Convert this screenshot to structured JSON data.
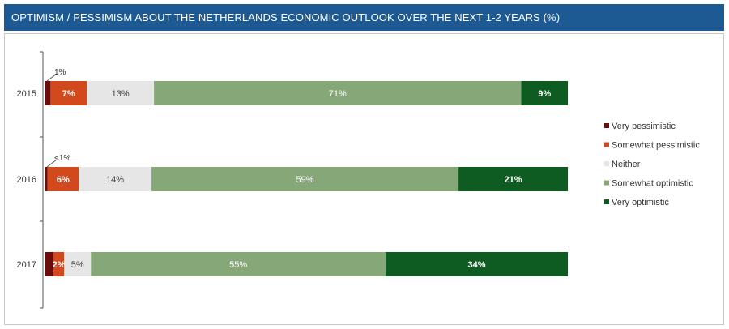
{
  "header": {
    "title": "OPTIMISM / PESSIMISM ABOUT THE NETHERLANDS ECONOMIC OUTLOOK OVER THE NEXT 1-2 YEARS (%)"
  },
  "chart_data": {
    "type": "bar",
    "orientation": "horizontal",
    "stacked": true,
    "title": "OPTIMISM / PESSIMISM ABOUT THE NETHERLANDS ECONOMIC OUTLOOK OVER THE NEXT 1-2 YEARS (%)",
    "categories": [
      "2015",
      "2016",
      "2017"
    ],
    "xlim": [
      0,
      100
    ],
    "grid": false,
    "legend_position": "right",
    "series": [
      {
        "name": "Very pessimistic",
        "color": "#6b0d0d",
        "values": [
          1,
          0.4,
          1.5
        ],
        "labels": [
          "1%",
          "<1%",
          ""
        ],
        "label_placement": "callout"
      },
      {
        "name": "Somewhat pessimistic",
        "color": "#d1491c",
        "values": [
          7,
          6,
          2
        ],
        "labels": [
          "7%",
          "6%",
          "2%"
        ],
        "label_color": "#ffffff"
      },
      {
        "name": "Neither",
        "color": "#e6e6e6",
        "values": [
          13,
          14,
          5
        ],
        "labels": [
          "13%",
          "14%",
          "5%"
        ],
        "label_color": "#444444"
      },
      {
        "name": "Somewhat optimistic",
        "color": "#86a878",
        "values": [
          71,
          59,
          55
        ],
        "labels": [
          "71%",
          "59%",
          "55%"
        ],
        "label_color": "#ffffff"
      },
      {
        "name": "Very optimistic",
        "color": "#0f5c23",
        "values": [
          9,
          21,
          34
        ],
        "labels": [
          "9%",
          "21%",
          "34%"
        ],
        "label_color": "#ffffff"
      }
    ]
  }
}
